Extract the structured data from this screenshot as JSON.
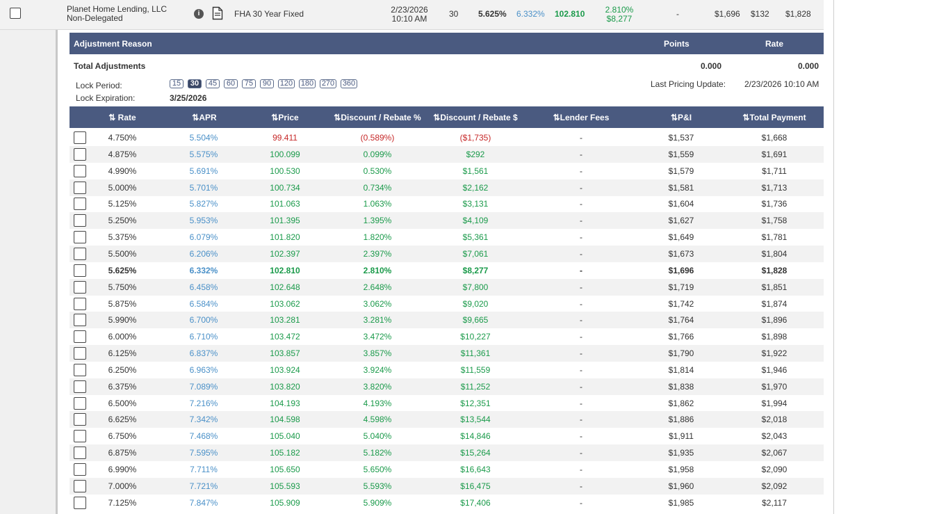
{
  "lender": {
    "name": "Planet Home Lending, LLC",
    "type": "Non-Delegated",
    "product": "FHA 30 Year Fixed",
    "date": "2/23/2026",
    "time": "10:10 AM",
    "lock_days": "30",
    "rate": "5.625%",
    "apr": "6.332%",
    "price": "102.810",
    "rebate_pct": "2.810%",
    "rebate_amt": "$8,277",
    "lender_fees": "-",
    "pi": "$1,696",
    "mi": "$132",
    "total": "$1,828"
  },
  "adjustments": {
    "header_reason": "Adjustment Reason",
    "header_points": "Points",
    "header_rate": "Rate",
    "total_label": "Total Adjustments",
    "total_points": "0.000",
    "total_rate": "0.000",
    "lock_period_label": "Lock Period:",
    "lock_expiration_label": "Lock Expiration:",
    "lock_expiration_value": "3/25/2026",
    "last_pricing_label": "Last Pricing Update:",
    "last_pricing_value": "2/23/2026 10:10 AM",
    "lock_options": [
      "15",
      "30",
      "45",
      "60",
      "75",
      "90",
      "120",
      "180",
      "270",
      "360"
    ],
    "lock_selected": "30"
  },
  "table": {
    "headers": {
      "rate": "⇅ Rate",
      "apr": "⇅APR",
      "price": "⇅Price",
      "disc_pct": "⇅Discount / Rebate %",
      "disc_amt": "⇅Discount / Rebate $",
      "fees": "⇅Lender Fees",
      "pi": "⇅P&I",
      "total": "⇅Total Payment"
    },
    "selected_rate": "5.625%",
    "rows": [
      {
        "rate": "4.750%",
        "apr": "5.504%",
        "price": "99.411",
        "disc_pct": "(0.589%)",
        "disc_amt": "($1,735)",
        "fees": "-",
        "pi": "$1,537",
        "total": "$1,668",
        "negative": true
      },
      {
        "rate": "4.875%",
        "apr": "5.575%",
        "price": "100.099",
        "disc_pct": "0.099%",
        "disc_amt": "$292",
        "fees": "-",
        "pi": "$1,559",
        "total": "$1,691",
        "negative": false
      },
      {
        "rate": "4.990%",
        "apr": "5.691%",
        "price": "100.530",
        "disc_pct": "0.530%",
        "disc_amt": "$1,561",
        "fees": "-",
        "pi": "$1,579",
        "total": "$1,711",
        "negative": false
      },
      {
        "rate": "5.000%",
        "apr": "5.701%",
        "price": "100.734",
        "disc_pct": "0.734%",
        "disc_amt": "$2,162",
        "fees": "-",
        "pi": "$1,581",
        "total": "$1,713",
        "negative": false
      },
      {
        "rate": "5.125%",
        "apr": "5.827%",
        "price": "101.063",
        "disc_pct": "1.063%",
        "disc_amt": "$3,131",
        "fees": "-",
        "pi": "$1,604",
        "total": "$1,736",
        "negative": false
      },
      {
        "rate": "5.250%",
        "apr": "5.953%",
        "price": "101.395",
        "disc_pct": "1.395%",
        "disc_amt": "$4,109",
        "fees": "-",
        "pi": "$1,627",
        "total": "$1,758",
        "negative": false
      },
      {
        "rate": "5.375%",
        "apr": "6.079%",
        "price": "101.820",
        "disc_pct": "1.820%",
        "disc_amt": "$5,361",
        "fees": "-",
        "pi": "$1,649",
        "total": "$1,781",
        "negative": false
      },
      {
        "rate": "5.500%",
        "apr": "6.206%",
        "price": "102.397",
        "disc_pct": "2.397%",
        "disc_amt": "$7,061",
        "fees": "-",
        "pi": "$1,673",
        "total": "$1,804",
        "negative": false
      },
      {
        "rate": "5.625%",
        "apr": "6.332%",
        "price": "102.810",
        "disc_pct": "2.810%",
        "disc_amt": "$8,277",
        "fees": "-",
        "pi": "$1,696",
        "total": "$1,828",
        "negative": false
      },
      {
        "rate": "5.750%",
        "apr": "6.458%",
        "price": "102.648",
        "disc_pct": "2.648%",
        "disc_amt": "$7,800",
        "fees": "-",
        "pi": "$1,719",
        "total": "$1,851",
        "negative": false
      },
      {
        "rate": "5.875%",
        "apr": "6.584%",
        "price": "103.062",
        "disc_pct": "3.062%",
        "disc_amt": "$9,020",
        "fees": "-",
        "pi": "$1,742",
        "total": "$1,874",
        "negative": false
      },
      {
        "rate": "5.990%",
        "apr": "6.700%",
        "price": "103.281",
        "disc_pct": "3.281%",
        "disc_amt": "$9,665",
        "fees": "-",
        "pi": "$1,764",
        "total": "$1,896",
        "negative": false
      },
      {
        "rate": "6.000%",
        "apr": "6.710%",
        "price": "103.472",
        "disc_pct": "3.472%",
        "disc_amt": "$10,227",
        "fees": "-",
        "pi": "$1,766",
        "total": "$1,898",
        "negative": false
      },
      {
        "rate": "6.125%",
        "apr": "6.837%",
        "price": "103.857",
        "disc_pct": "3.857%",
        "disc_amt": "$11,361",
        "fees": "-",
        "pi": "$1,790",
        "total": "$1,922",
        "negative": false
      },
      {
        "rate": "6.250%",
        "apr": "6.963%",
        "price": "103.924",
        "disc_pct": "3.924%",
        "disc_amt": "$11,559",
        "fees": "-",
        "pi": "$1,814",
        "total": "$1,946",
        "negative": false
      },
      {
        "rate": "6.375%",
        "apr": "7.089%",
        "price": "103.820",
        "disc_pct": "3.820%",
        "disc_amt": "$11,252",
        "fees": "-",
        "pi": "$1,838",
        "total": "$1,970",
        "negative": false
      },
      {
        "rate": "6.500%",
        "apr": "7.216%",
        "price": "104.193",
        "disc_pct": "4.193%",
        "disc_amt": "$12,351",
        "fees": "-",
        "pi": "$1,862",
        "total": "$1,994",
        "negative": false
      },
      {
        "rate": "6.625%",
        "apr": "7.342%",
        "price": "104.598",
        "disc_pct": "4.598%",
        "disc_amt": "$13,544",
        "fees": "-",
        "pi": "$1,886",
        "total": "$2,018",
        "negative": false
      },
      {
        "rate": "6.750%",
        "apr": "7.468%",
        "price": "105.040",
        "disc_pct": "5.040%",
        "disc_amt": "$14,846",
        "fees": "-",
        "pi": "$1,911",
        "total": "$2,043",
        "negative": false
      },
      {
        "rate": "6.875%",
        "apr": "7.595%",
        "price": "105.182",
        "disc_pct": "5.182%",
        "disc_amt": "$15,264",
        "fees": "-",
        "pi": "$1,935",
        "total": "$2,067",
        "negative": false
      },
      {
        "rate": "6.990%",
        "apr": "7.711%",
        "price": "105.650",
        "disc_pct": "5.650%",
        "disc_amt": "$16,643",
        "fees": "-",
        "pi": "$1,958",
        "total": "$2,090",
        "negative": false
      },
      {
        "rate": "7.000%",
        "apr": "7.721%",
        "price": "105.593",
        "disc_pct": "5.593%",
        "disc_amt": "$16,475",
        "fees": "-",
        "pi": "$1,960",
        "total": "$2,092",
        "negative": false
      },
      {
        "rate": "7.125%",
        "apr": "7.847%",
        "price": "105.909",
        "disc_pct": "5.909%",
        "disc_amt": "$17,406",
        "fees": "-",
        "pi": "$1,985",
        "total": "$2,117",
        "negative": false
      }
    ]
  },
  "colors": {
    "header_bg": "#4a5a80",
    "positive": "#1a9a4a",
    "negative": "#c62828",
    "apr": "#4a90c8"
  }
}
